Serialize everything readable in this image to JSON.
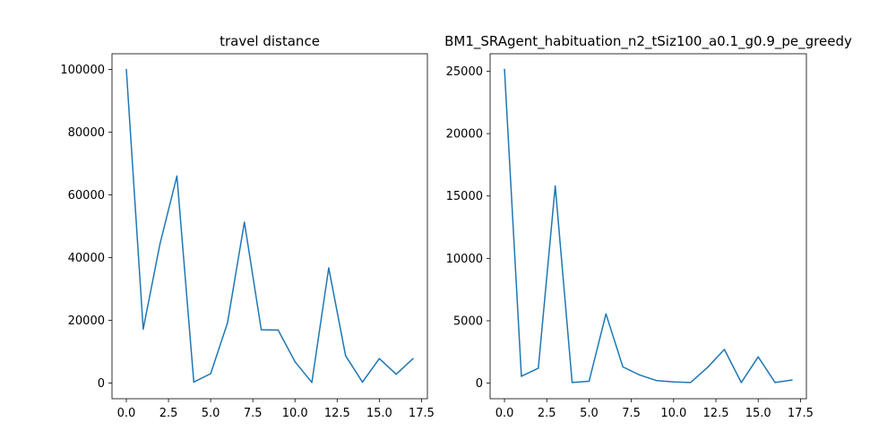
{
  "chart_data": [
    {
      "type": "line",
      "title": "travel distance",
      "xlabel": "",
      "ylabel": "",
      "xlim": [
        -0.85,
        17.85
      ],
      "ylim": [
        -5000,
        105000
      ],
      "xticks": [
        0.0,
        2.5,
        5.0,
        7.5,
        10.0,
        12.5,
        15.0,
        17.5
      ],
      "xtick_labels": [
        "0.0",
        "2.5",
        "5.0",
        "7.5",
        "10.0",
        "12.5",
        "15.0",
        "17.5"
      ],
      "yticks": [
        0,
        20000,
        40000,
        60000,
        80000,
        100000
      ],
      "ytick_labels": [
        "0",
        "20000",
        "40000",
        "60000",
        "80000",
        "100000"
      ],
      "grid": false,
      "series": [
        {
          "color": "#1f77b4",
          "x": [
            0,
            1,
            2,
            3,
            4,
            5,
            6,
            7,
            8,
            9,
            10,
            11,
            12,
            13,
            14,
            15,
            16,
            17
          ],
          "values": [
            100000,
            17200,
            44500,
            66000,
            300,
            3000,
            19200,
            51300,
            17000,
            16900,
            6800,
            200,
            36700,
            8700,
            300,
            7800,
            2800,
            7800
          ]
        }
      ]
    },
    {
      "type": "line",
      "title": "BM1_SRAgent_habituation_n2_tSiz100_a0.1_g0.9_pe_greedy",
      "xlabel": "",
      "ylabel": "",
      "xlim": [
        -0.85,
        17.85
      ],
      "ylim": [
        -1250,
        26400
      ],
      "xticks": [
        0.0,
        2.5,
        5.0,
        7.5,
        10.0,
        12.5,
        15.0,
        17.5
      ],
      "xtick_labels": [
        "0.0",
        "2.5",
        "5.0",
        "7.5",
        "10.0",
        "12.5",
        "15.0",
        "17.5"
      ],
      "yticks": [
        0,
        5000,
        10000,
        15000,
        20000,
        25000
      ],
      "ytick_labels": [
        "0",
        "5000",
        "10000",
        "15000",
        "20000",
        "25000"
      ],
      "grid": false,
      "series": [
        {
          "color": "#1f77b4",
          "x": [
            0,
            1,
            2,
            3,
            4,
            5,
            6,
            7,
            8,
            9,
            10,
            11,
            12,
            13,
            14,
            15,
            16,
            17
          ],
          "values": [
            25150,
            550,
            1200,
            15800,
            50,
            150,
            5550,
            1300,
            650,
            200,
            100,
            50,
            1250,
            2700,
            50,
            2100,
            50,
            250
          ]
        }
      ]
    }
  ]
}
